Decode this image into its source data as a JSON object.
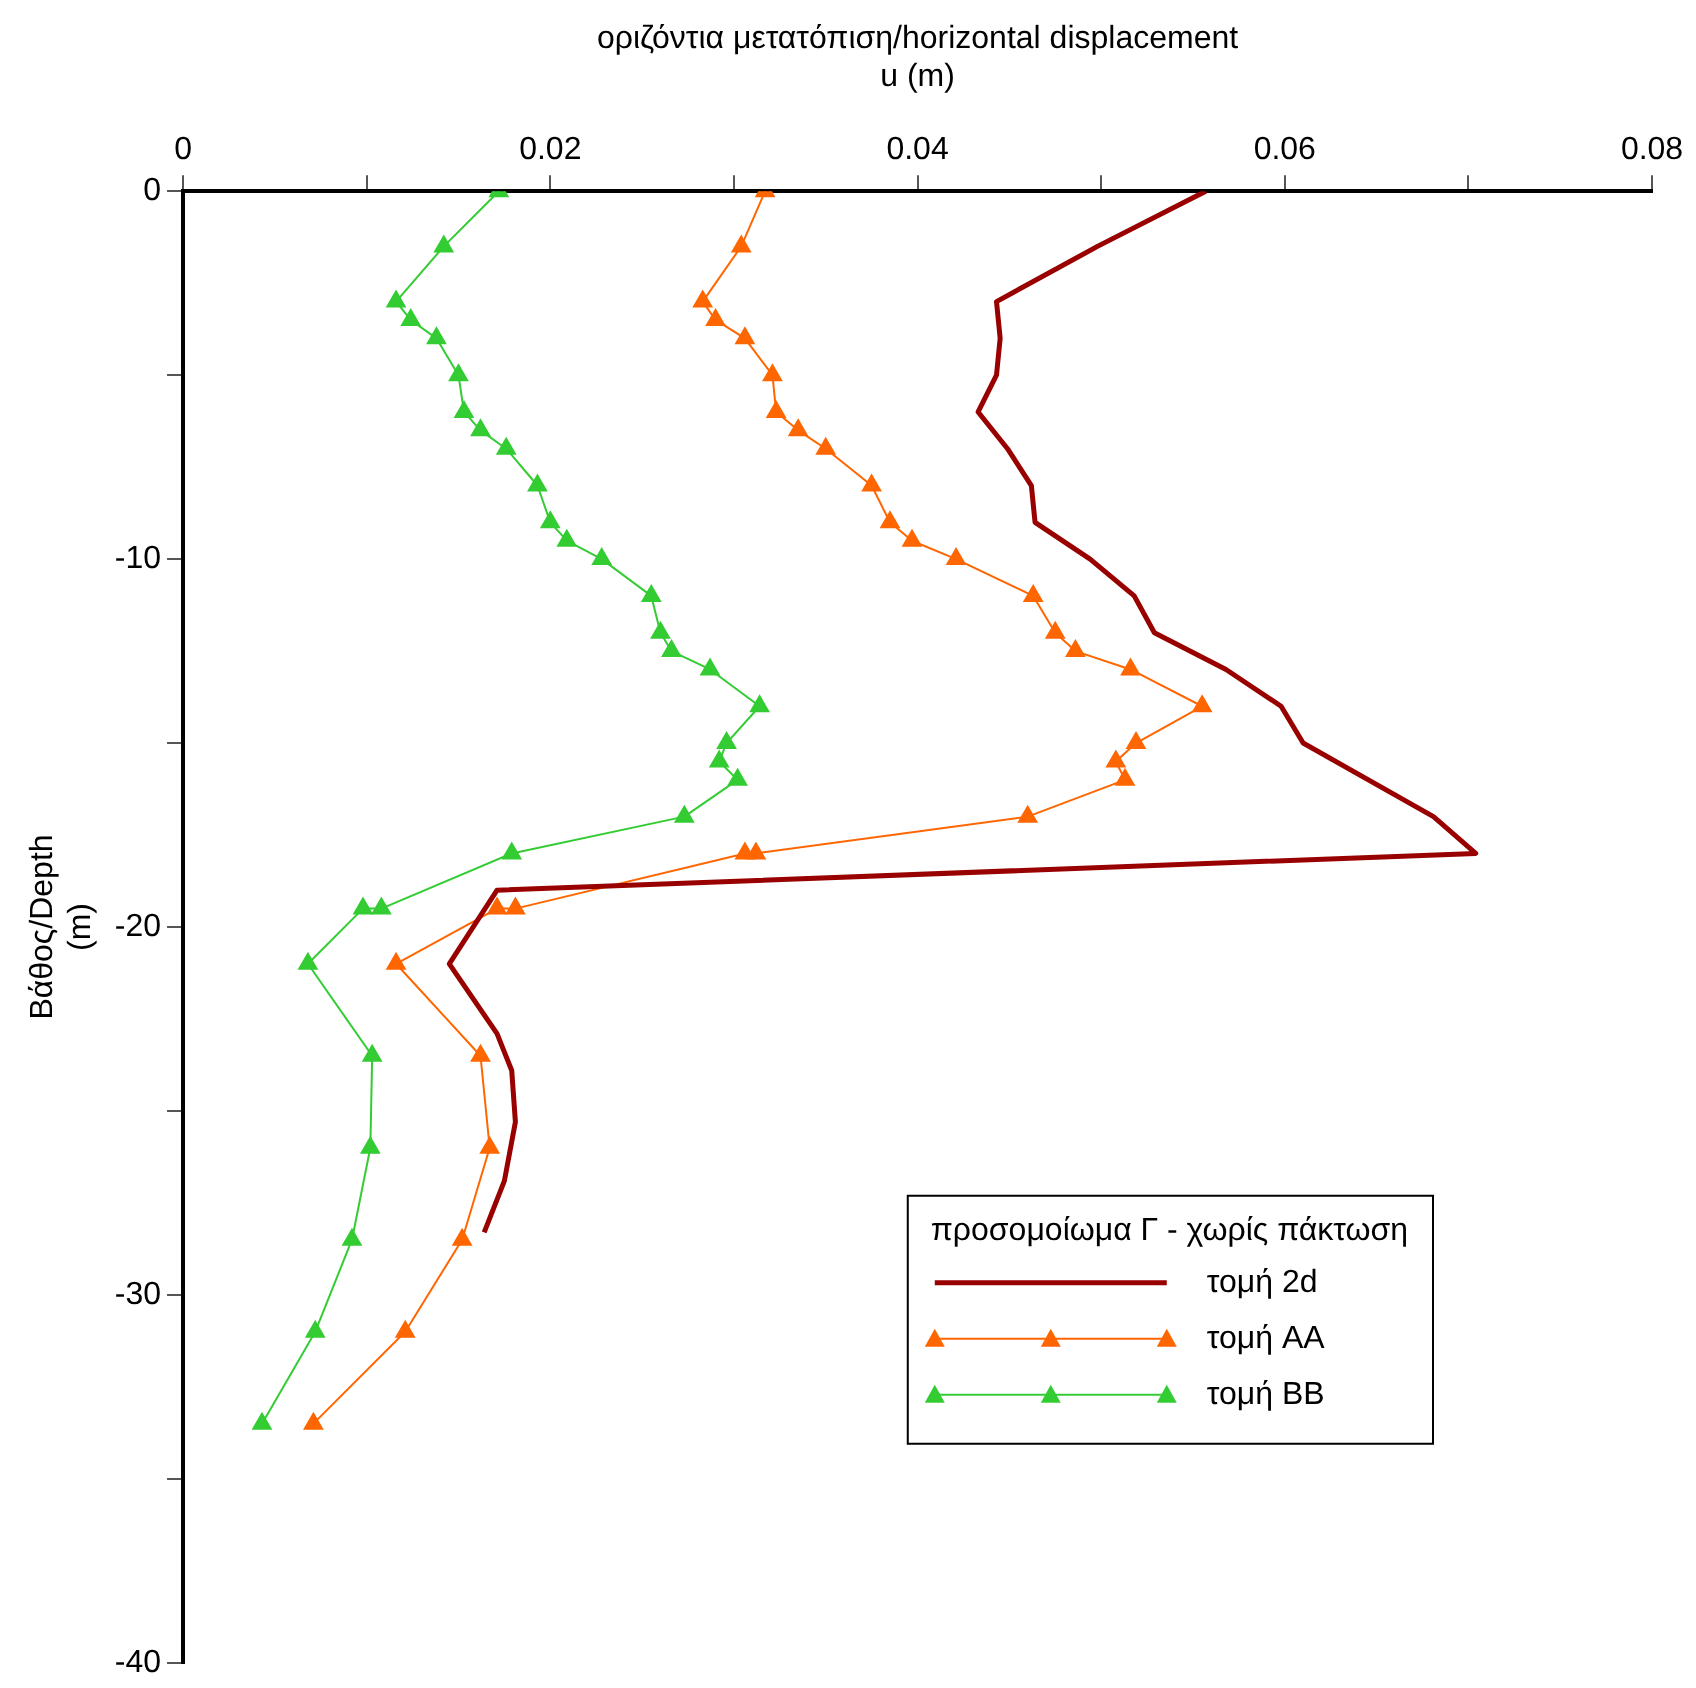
{
  "chart_data": {
    "type": "line",
    "xlabel": "οριζόντια μετατόπιση/horizontal displacement\nu (m)",
    "ylabel": "Βάθος/Depth\n(m)",
    "legend_title": "προσομοίωμα Γ - χωρίς πάκτωση",
    "legend": "bottom right",
    "grid": false,
    "xlim": [
      0,
      0.08
    ],
    "xticks": [
      0,
      {
        "value": 0.01,
        "label": null
      },
      0.02,
      {
        "value": 0.03,
        "label": null
      },
      0.04,
      {
        "value": 0.05,
        "label": null
      },
      0.06,
      {
        "value": 0.07,
        "label": null
      },
      0.08
    ],
    "ylim": [
      -40,
      0
    ],
    "yticks": [
      -40,
      {
        "value": -35,
        "label": null
      },
      -30,
      {
        "value": -25,
        "label": null
      },
      -20,
      {
        "value": -15,
        "label": null
      },
      -10,
      {
        "value": -5,
        "label": null
      },
      0
    ],
    "series": [
      {
        "name": "τομή 2d",
        "color": "#990000",
        "marker": "none",
        "x": [
          0.0557,
          0.0498,
          0.0443,
          0.0445,
          0.0443,
          0.0433,
          0.0449,
          0.0462,
          0.0464,
          0.0494,
          0.0518,
          0.0529,
          0.0568,
          0.0598,
          0.061,
          0.0681,
          0.0704,
          0.0171,
          0.0145,
          0.0171,
          0.0179,
          0.0181,
          0.0175,
          0.0164
        ],
        "values": [
          0,
          -1.5,
          -3,
          -4,
          -5,
          -6,
          -7,
          -8,
          -9,
          -10,
          -11,
          -12,
          -13,
          -14,
          -15,
          -17,
          -18,
          -19,
          -21,
          -22.9,
          -23.9,
          -25.3,
          -26.9,
          -28.3
        ]
      },
      {
        "name": "τομή AA",
        "color": "#ff6600",
        "marker": "triangle",
        "x": [
          0.0317,
          0.0304,
          0.0283,
          0.029,
          0.0306,
          0.0321,
          0.0323,
          0.0335,
          0.035,
          0.0375,
          0.0385,
          0.0397,
          0.0421,
          0.0463,
          0.0475,
          0.0486,
          0.0516,
          0.0555,
          0.0519,
          0.0508,
          0.0513,
          0.046,
          0.0312,
          0.0306,
          0.0181,
          0.0171,
          0.0116,
          0.0162,
          0.0167,
          0.0152,
          0.0121,
          0.0071
        ],
        "values": [
          0,
          -1.5,
          -3,
          -3.5,
          -4,
          -5,
          -6,
          -6.5,
          -7,
          -8,
          -9,
          -9.5,
          -10,
          -11,
          -12,
          -12.5,
          -13,
          -14,
          -15,
          -15.5,
          -16,
          -17,
          -18,
          -18,
          -19.5,
          -19.5,
          -21,
          -23.5,
          -26,
          -28.5,
          -31,
          -33.5
        ]
      },
      {
        "name": "τομή BB",
        "color": "#33cc33",
        "marker": "triangle",
        "x": [
          0.0172,
          0.0142,
          0.0116,
          0.0124,
          0.0138,
          0.015,
          0.0153,
          0.0162,
          0.0176,
          0.0193,
          0.02,
          0.0209,
          0.0228,
          0.0255,
          0.026,
          0.0266,
          0.0287,
          0.0314,
          0.0296,
          0.0292,
          0.0302,
          0.0273,
          0.0179,
          0.0108,
          0.0098,
          0.0068,
          0.0103,
          0.0102,
          0.0092,
          0.0072,
          0.0043
        ],
        "values": [
          0,
          -1.5,
          -3,
          -3.5,
          -4,
          -5,
          -6,
          -6.5,
          -7,
          -8,
          -9,
          -9.5,
          -10,
          -11,
          -12,
          -12.5,
          -13,
          -14,
          -15,
          -15.5,
          -16,
          -17,
          -18,
          -19.5,
          -19.5,
          -21,
          -23.5,
          -26,
          -28.5,
          -31,
          -33.5
        ]
      }
    ]
  }
}
